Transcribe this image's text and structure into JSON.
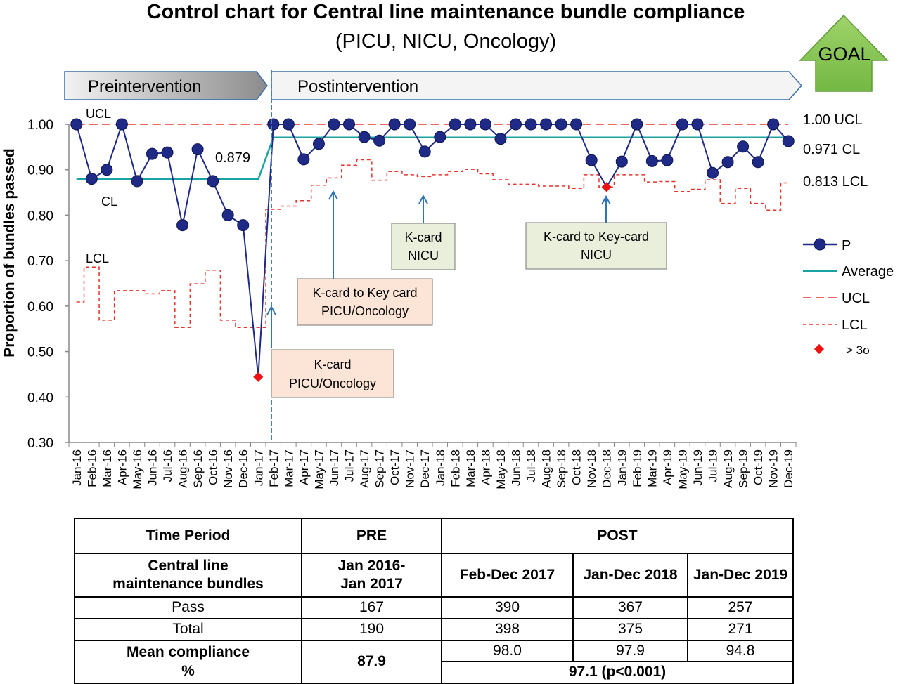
{
  "chart_data": {
    "type": "line",
    "title": "Control chart for Central line maintenance bundle compliance",
    "subtitle": "(PICU, NICU, Oncology)",
    "ylabel": "Proportion of bundles passed",
    "xlabel": "",
    "ylim": [
      0.3,
      1.0
    ],
    "yticks": [
      "0.30",
      "0.40",
      "0.50",
      "0.60",
      "0.70",
      "0.80",
      "0.90",
      "1.00"
    ],
    "grid": false,
    "legend_position": "right",
    "categories": [
      "Jan-16",
      "Feb-16",
      "Mar-16",
      "Apr-16",
      "May-16",
      "Jun-16",
      "Jul-16",
      "Aug-16",
      "Sep-16",
      "Oct-16",
      "Nov-16",
      "Dec-16",
      "Jan-17",
      "Feb-17",
      "Mar-17",
      "Apr-17",
      "May-17",
      "Jun-17",
      "Jul-17",
      "Aug-17",
      "Sep-17",
      "Oct-17",
      "Nov-17",
      "Dec-17",
      "Jan-18",
      "Feb-18",
      "Mar-18",
      "Apr-18",
      "May-18",
      "Jun-18",
      "Jul-18",
      "Aug-18",
      "Sep-18",
      "Oct-18",
      "Nov-18",
      "Dec-18",
      "Jan-19",
      "Feb-19",
      "Mar-19",
      "Apr-19",
      "May-19",
      "Jun-19",
      "Jul-19",
      "Aug-19",
      "Sep-19",
      "Oct-19",
      "Nov-19",
      "Dec-19"
    ],
    "series": [
      {
        "name": "P",
        "color": "#1f2a87",
        "values": [
          1.0,
          0.88,
          0.9,
          1.0,
          0.875,
          0.935,
          0.938,
          0.778,
          0.945,
          0.875,
          0.8,
          0.778,
          0.444,
          1.0,
          1.0,
          0.923,
          0.957,
          1.0,
          1.0,
          0.972,
          0.964,
          1.0,
          1.0,
          0.94,
          0.972,
          1.0,
          1.0,
          1.0,
          0.968,
          1.0,
          1.0,
          1.0,
          1.0,
          1.0,
          0.921,
          0.862,
          0.918,
          1.0,
          0.919,
          0.921,
          1.0,
          1.0,
          0.893,
          0.917,
          0.951,
          0.917,
          1.0,
          0.963
        ]
      },
      {
        "name": "Average",
        "color": "#1aa3a3",
        "values": [
          0.879,
          0.879,
          0.879,
          0.879,
          0.879,
          0.879,
          0.879,
          0.879,
          0.879,
          0.879,
          0.879,
          0.879,
          0.879,
          0.971,
          0.971,
          0.971,
          0.971,
          0.971,
          0.971,
          0.971,
          0.971,
          0.971,
          0.971,
          0.971,
          0.971,
          0.971,
          0.971,
          0.971,
          0.971,
          0.971,
          0.971,
          0.971,
          0.971,
          0.971,
          0.971,
          0.971,
          0.971,
          0.971,
          0.971,
          0.971,
          0.971,
          0.971,
          0.971,
          0.971,
          0.971,
          0.971,
          0.971,
          0.971
        ]
      },
      {
        "name": "UCL",
        "color": "#e8332b",
        "values": [
          1.0,
          1.0,
          1.0,
          1.0,
          1.0,
          1.0,
          1.0,
          1.0,
          1.0,
          1.0,
          1.0,
          1.0,
          1.0,
          1.0,
          1.0,
          1.0,
          1.0,
          1.0,
          1.0,
          1.0,
          1.0,
          1.0,
          1.0,
          1.0,
          1.0,
          1.0,
          1.0,
          1.0,
          1.0,
          1.0,
          1.0,
          1.0,
          1.0,
          1.0,
          1.0,
          1.0,
          1.0,
          1.0,
          1.0,
          1.0,
          1.0,
          1.0,
          1.0,
          1.0,
          1.0,
          1.0,
          1.0,
          1.0
        ]
      },
      {
        "name": "LCL",
        "color": "#e8332b",
        "values": [
          0.609,
          0.686,
          0.569,
          0.634,
          0.634,
          0.627,
          0.634,
          0.553,
          0.649,
          0.679,
          0.569,
          0.553,
          0.553,
          0.813,
          0.82,
          0.832,
          0.866,
          0.882,
          0.91,
          0.922,
          0.877,
          0.896,
          0.889,
          0.885,
          0.889,
          0.896,
          0.901,
          0.891,
          0.878,
          0.868,
          0.868,
          0.864,
          0.864,
          0.859,
          0.889,
          0.862,
          0.889,
          0.889,
          0.873,
          0.874,
          0.852,
          0.857,
          0.878,
          0.826,
          0.859,
          0.826,
          0.811,
          0.871
        ]
      }
    ],
    "special_cause": {
      "name": "> 3σ",
      "color": "#ee1111",
      "points": [
        {
          "x": "Jan-17",
          "y": 0.444
        },
        {
          "x": "Dec-18",
          "y": 0.862
        }
      ]
    },
    "phases": [
      {
        "label": "Preintervention",
        "from": "Jan-16",
        "to": "Jan-17"
      },
      {
        "label": "Postintervention",
        "from": "Feb-17",
        "to": "Dec-19"
      }
    ],
    "goal_label": "GOAL",
    "line_labels": {
      "ucl_left": "UCL",
      "cl_left": "CL",
      "lcl_left": "LCL",
      "pre_mean": "0.879",
      "ucl_right": "1.00 UCL",
      "cl_right": "0.971 CL",
      "lcl_right": "0.813 LCL"
    },
    "annotations": [
      {
        "text": [
          "K-card",
          "PICU/Oncology"
        ],
        "x": "Jan-17",
        "style": "peach"
      },
      {
        "text": [
          "K-card to Key card",
          "PICU/Oncology"
        ],
        "x": "Jun-17",
        "style": "peach"
      },
      {
        "text": [
          "K-card",
          "NICU"
        ],
        "x": "Nov-17",
        "style": "green"
      },
      {
        "text": [
          "K-card to Key-card",
          "NICU"
        ],
        "x": "Dec-18",
        "style": "green"
      }
    ]
  },
  "table": {
    "header": {
      "period": "Time Period",
      "pre": "PRE",
      "post": "POST"
    },
    "row_bundles": {
      "label_1": "Central line",
      "label_2": "maintenance bundles",
      "pre_1": "Jan 2016-",
      "pre_2": "Jan 2017",
      "post": [
        "Feb-Dec 2017",
        "Jan-Dec 2018",
        "Jan-Dec 2019"
      ]
    },
    "row_pass": {
      "label": "Pass",
      "pre": "167",
      "post": [
        "390",
        "367",
        "257"
      ]
    },
    "row_total": {
      "label": "Total",
      "pre": "190",
      "post": [
        "398",
        "375",
        "271"
      ]
    },
    "row_mean": {
      "label_1": "Mean compliance",
      "label_2": "%",
      "pre": "87.9",
      "post": [
        "98.0",
        "97.9",
        "94.8"
      ],
      "post_overall": "97.1 (p<0.001)"
    }
  }
}
